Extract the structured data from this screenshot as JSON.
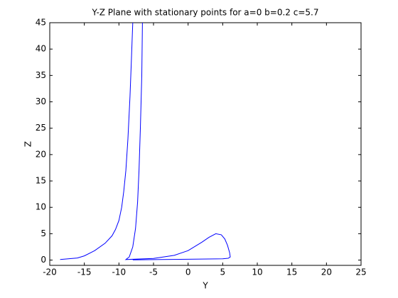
{
  "chart_data": {
    "type": "line",
    "title": "Y-Z Plane with stationary points for a=0 b=0.2 c=5.7",
    "x_label": "Y",
    "y_label": "Z",
    "xlim": [
      -20,
      25
    ],
    "xticks": [
      -20,
      -15,
      -10,
      -5,
      0,
      5,
      10,
      15,
      20,
      25
    ],
    "ylim": [
      -1,
      45
    ],
    "yticks": [
      0,
      5,
      10,
      15,
      20,
      25,
      30,
      35,
      40,
      45
    ],
    "grid": false,
    "series": [
      {
        "color": "#0000ff",
        "x": [
          -18.5,
          -16,
          -15,
          -13.5,
          -12,
          -11,
          -10.5,
          -10,
          -9.6,
          -9.3,
          -9,
          -8.7,
          -8.4,
          -8.2,
          -8,
          null,
          -6.6,
          -6.7,
          -6.9,
          -7.1,
          -7.3,
          -7.6,
          -8,
          -8.5,
          -9,
          -5,
          -2,
          0,
          2,
          3,
          4,
          4.8,
          5.3,
          5.7,
          6,
          6.1,
          5.8,
          5,
          2,
          0,
          -4,
          -8
        ],
        "y": [
          0.1,
          0.4,
          0.8,
          1.8,
          3.2,
          4.6,
          5.8,
          7.5,
          10,
          13,
          17,
          23,
          31,
          38,
          45,
          null,
          45,
          35,
          25,
          17,
          11,
          6,
          2.5,
          0.6,
          0.1,
          0.3,
          0.9,
          1.8,
          3.4,
          4.3,
          5,
          4.8,
          4,
          2.8,
          1.4,
          0.6,
          0.35,
          0.25,
          0.2,
          0.15,
          0.1,
          0.05
        ]
      }
    ]
  }
}
